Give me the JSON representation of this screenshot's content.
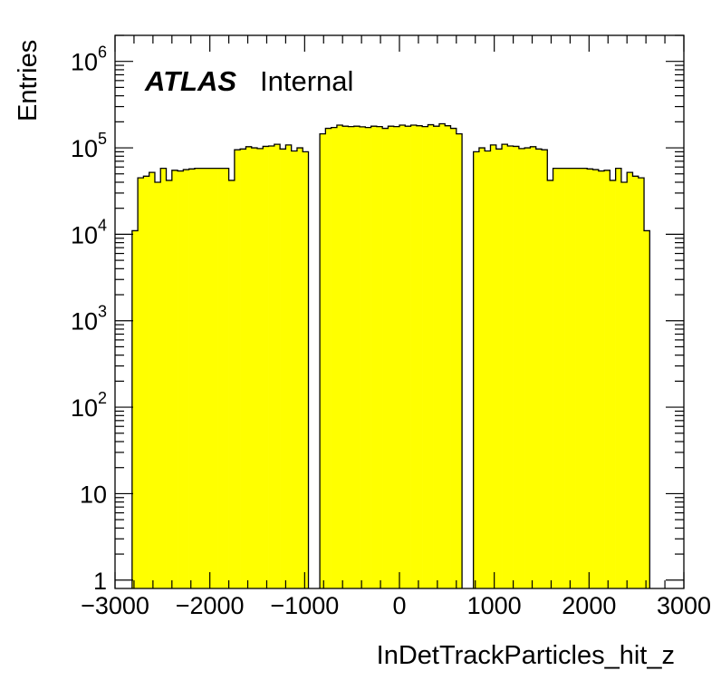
{
  "chart_data": {
    "type": "bar",
    "xlabel": "InDetTrackParticles_hit_z",
    "ylabel": "Entries",
    "xlim": [
      -3000,
      3000
    ],
    "ylim": [
      0.8,
      2000000
    ],
    "log_y": true,
    "fill_color": "#ffff00",
    "edge_color": "#000000",
    "annotation": {
      "bold": "ATLAS",
      "normal": "Internal"
    },
    "x_ticks": [
      {
        "value": -3000,
        "label": "−3000"
      },
      {
        "value": -2000,
        "label": "−2000"
      },
      {
        "value": -1000,
        "label": "−1000"
      },
      {
        "value": 0,
        "label": "0"
      },
      {
        "value": 1000,
        "label": "1000"
      },
      {
        "value": 2000,
        "label": "2000"
      },
      {
        "value": 3000,
        "label": "3000"
      }
    ],
    "y_ticks": [
      {
        "value": 1,
        "base": "1",
        "exp": ""
      },
      {
        "value": 10,
        "base": "10",
        "exp": ""
      },
      {
        "value": 100,
        "base": "10",
        "exp": "2"
      },
      {
        "value": 1000,
        "base": "10",
        "exp": "3"
      },
      {
        "value": 10000,
        "base": "10",
        "exp": "4"
      },
      {
        "value": 100000,
        "base": "10",
        "exp": "5"
      },
      {
        "value": 1000000,
        "base": "10",
        "exp": "6"
      }
    ],
    "bin_width": 60,
    "bins_start": -2820,
    "values": [
      11000,
      45000,
      47000,
      52000,
      40000,
      58000,
      42000,
      55000,
      54000,
      56000,
      57000,
      58000,
      58000,
      58000,
      58000,
      58000,
      58000,
      42000,
      95000,
      97000,
      103000,
      100000,
      98000,
      104000,
      105000,
      110000,
      97000,
      108000,
      92000,
      100000,
      90000,
      0,
      0,
      145000,
      168000,
      172000,
      183000,
      178000,
      176000,
      178000,
      175000,
      172000,
      178000,
      176000,
      168000,
      178000,
      176000,
      183000,
      178000,
      183000,
      180000,
      176000,
      185000,
      178000,
      190000,
      180000,
      168000,
      145000,
      0,
      0,
      90000,
      100000,
      92000,
      108000,
      97000,
      110000,
      105000,
      104000,
      98000,
      100000,
      103000,
      97000,
      95000,
      42000,
      58000,
      58000,
      58000,
      58000,
      58000,
      58000,
      57000,
      56000,
      54000,
      55000,
      42000,
      58000,
      40000,
      52000,
      47000,
      45000,
      11000
    ]
  }
}
